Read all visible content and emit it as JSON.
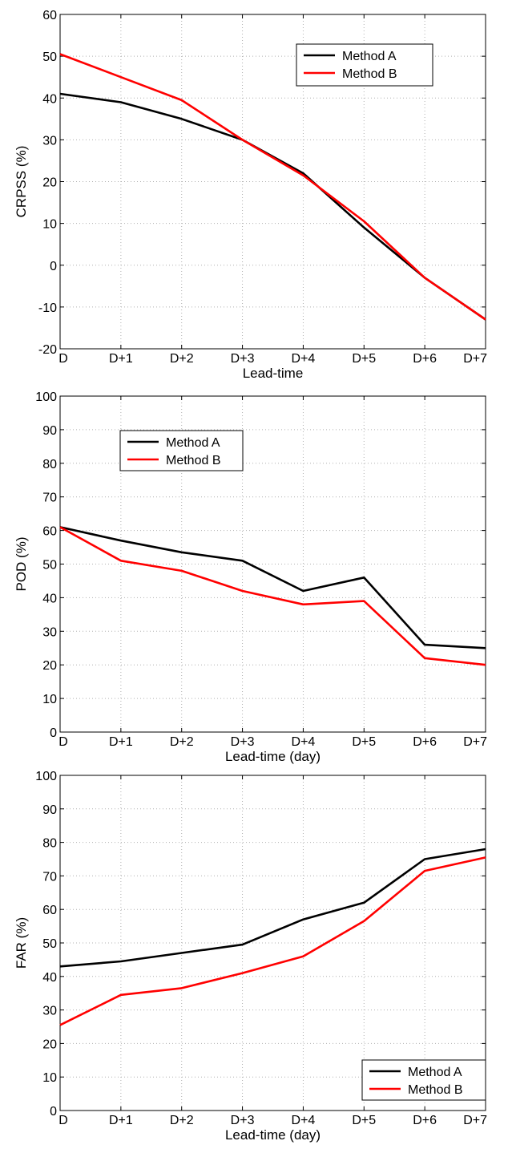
{
  "colors": {
    "method_a": "#000000",
    "method_b": "#ff0000",
    "grid": "#b0b0b0"
  },
  "chart_data": [
    {
      "type": "line",
      "xlabel": "Lead-time",
      "ylabel": "CRPSS (%)",
      "categories": [
        "D",
        "D+1",
        "D+2",
        "D+3",
        "D+4",
        "D+5",
        "D+6",
        "D+7"
      ],
      "ylim": [
        -20,
        60
      ],
      "yticks": [
        -20,
        -10,
        0,
        10,
        20,
        30,
        40,
        50,
        60
      ],
      "grid": true,
      "legend_position": "top-right",
      "series": [
        {
          "name": "Method A",
          "values": [
            41,
            39,
            35,
            30,
            22,
            9,
            -3,
            -13
          ]
        },
        {
          "name": "Method B",
          "values": [
            50.5,
            45,
            39.5,
            30,
            21.5,
            10.5,
            -3,
            -13
          ]
        }
      ]
    },
    {
      "type": "line",
      "xlabel": "Lead-time (day)",
      "ylabel": "POD (%)",
      "categories": [
        "D",
        "D+1",
        "D+2",
        "D+3",
        "D+4",
        "D+5",
        "D+6",
        "D+7"
      ],
      "ylim": [
        0,
        100
      ],
      "yticks": [
        0,
        10,
        20,
        30,
        40,
        50,
        60,
        70,
        80,
        90,
        100
      ],
      "grid": true,
      "legend_position": "upper-left",
      "series": [
        {
          "name": "Method A",
          "values": [
            61,
            57,
            53.5,
            51,
            42,
            46,
            26,
            25
          ]
        },
        {
          "name": "Method B",
          "values": [
            61,
            51,
            48,
            42,
            38,
            39,
            22,
            20
          ]
        }
      ]
    },
    {
      "type": "line",
      "xlabel": "Lead-time (day)",
      "ylabel": "FAR (%)",
      "categories": [
        "D",
        "D+1",
        "D+2",
        "D+3",
        "D+4",
        "D+5",
        "D+6",
        "D+7"
      ],
      "ylim": [
        0,
        100
      ],
      "yticks": [
        0,
        10,
        20,
        30,
        40,
        50,
        60,
        70,
        80,
        90,
        100
      ],
      "grid": true,
      "legend_position": "bottom-right",
      "series": [
        {
          "name": "Method A",
          "values": [
            43,
            44.5,
            47,
            49.5,
            57,
            62,
            75,
            78
          ]
        },
        {
          "name": "Method B",
          "values": [
            25.5,
            34.5,
            36.5,
            41,
            46,
            56.5,
            71.5,
            75.5
          ]
        }
      ]
    }
  ]
}
